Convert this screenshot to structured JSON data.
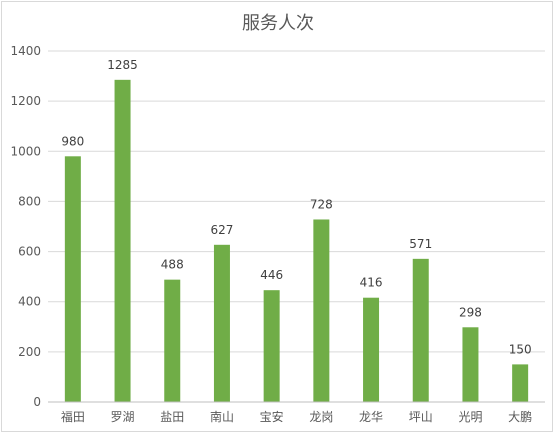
{
  "chart_data": {
    "type": "bar",
    "title": "服务人次",
    "categories": [
      "福田",
      "罗湖",
      "盐田",
      "南山",
      "宝安",
      "龙岗",
      "龙华",
      "坪山",
      "光明",
      "大鹏"
    ],
    "values": [
      980,
      1285,
      488,
      627,
      446,
      728,
      416,
      571,
      298,
      150
    ],
    "ylim": [
      0,
      1400
    ],
    "yticks": [
      0,
      200,
      400,
      600,
      800,
      1000,
      1200,
      1400
    ],
    "grid": true,
    "data_labels": true,
    "colors": {
      "bar": "#70ad47",
      "grid": "#d9d9d9",
      "axis": "#bfbfbf"
    }
  }
}
